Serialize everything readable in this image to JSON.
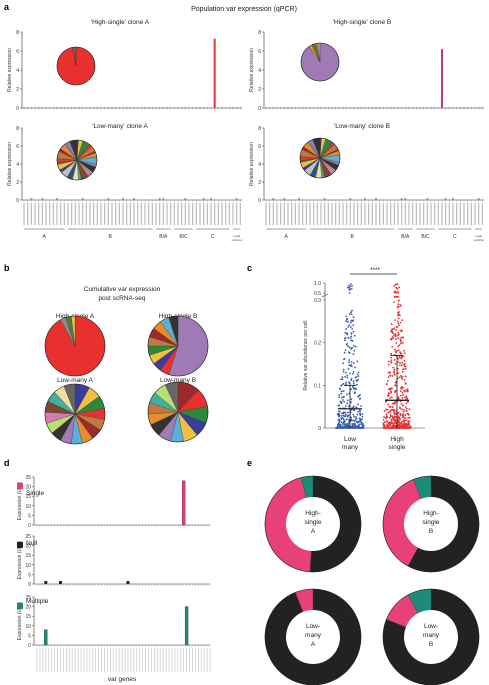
{
  "panel_labels": [
    "a",
    "b",
    "c",
    "d",
    "e"
  ],
  "panel_a": {
    "title": "Population var expression (qPCR)",
    "ylabel": "Relative expression",
    "ylim": [
      0,
      8
    ],
    "yticks": [
      "0",
      "2",
      "4",
      "6",
      "8"
    ],
    "group_labels": [
      "A",
      "B",
      "B/A",
      "B/C",
      "C",
      "upsE var2csa"
    ],
    "n_genes": 60
  },
  "chart_data": [
    {
      "type": "bar",
      "id": "a1",
      "title": "'High-single' clone A",
      "ylabel": "Relative expression",
      "ylim": [
        0,
        8
      ],
      "peak_index": 52,
      "peak_value": 7.3,
      "bar_color": "#e8302f",
      "pie_colors": [
        "#e8302f",
        "#e8302f",
        "#8c8c8c",
        "#4a7a4a"
      ],
      "pie_values": [
        97,
        1,
        1,
        1
      ]
    },
    {
      "type": "bar",
      "id": "a2",
      "title": "'High-single' clone B",
      "ylabel": "Relative expression",
      "ylim": [
        0,
        8
      ],
      "peak_index": 48,
      "peak_value": 6.2,
      "bar_color": "#c03a8a",
      "pie_colors": [
        "#a07ab5",
        "#e88c2a",
        "#4a7a4a",
        "#8c8c8c",
        "#d6a04a"
      ],
      "pie_values": [
        90,
        3,
        3,
        2,
        2
      ]
    },
    {
      "type": "bar",
      "id": "a3",
      "title": "'Low-many' clone A",
      "ylabel": "Relative expression",
      "ylim": [
        0,
        8
      ],
      "peak_index": null,
      "peak_value": 0.2,
      "bar_color": "#5b9bd5"
    },
    {
      "type": "bar",
      "id": "a4",
      "title": "'Low-many' clone B",
      "ylabel": "Relative expression",
      "ylim": [
        0,
        8
      ],
      "peak_index": null,
      "peak_value": 0.2,
      "bar_color": "#5b9bd5"
    },
    {
      "type": "pie",
      "id": "b1",
      "title": "High-single A",
      "values": [
        92,
        3,
        3,
        2
      ],
      "colors": [
        "#e8302f",
        "#8c8c8c",
        "#4a7a4a",
        "#f0c040"
      ]
    },
    {
      "type": "pie",
      "id": "b2",
      "title": "High-single B",
      "values": [
        55,
        5,
        5,
        5,
        5,
        5,
        5,
        5,
        5,
        5
      ],
      "colors": [
        "#a07ab5",
        "#e8302f",
        "#3c3c9c",
        "#f0c040",
        "#2a8a3a",
        "#c07a40",
        "#9c2a2a",
        "#e88c2a",
        "#5ab0d8",
        "#333333"
      ]
    },
    {
      "type": "pie",
      "id": "b3",
      "title": "Low-many A",
      "values": [
        8,
        7,
        7,
        6,
        6,
        6,
        6,
        6,
        6,
        6,
        6,
        6,
        6,
        6,
        6,
        6
      ],
      "colors": [
        "#3c3c9c",
        "#f0c040",
        "#2a8a3a",
        "#e8302f",
        "#c07a40",
        "#9c2a2a",
        "#e88c2a",
        "#5ab0d8",
        "#a07ab5",
        "#333333",
        "#b8e070",
        "#d67ab5",
        "#7a4a2a",
        "#40b0a0",
        "#f0e0a0",
        "#666666"
      ]
    },
    {
      "type": "pie",
      "id": "b4",
      "title": "Low-many B",
      "values": [
        12,
        10,
        9,
        8,
        8,
        7,
        7,
        7,
        6,
        6,
        6,
        7,
        7
      ],
      "colors": [
        "#9c2a2a",
        "#e8302f",
        "#2a8a3a",
        "#3c3c9c",
        "#f0c040",
        "#5ab0d8",
        "#a07ab5",
        "#333333",
        "#e88c2a",
        "#c07a40",
        "#40b0a0",
        "#b8e070",
        "#666666"
      ]
    },
    {
      "type": "scatter",
      "id": "c",
      "ylabel": "Relative var abundance per cell",
      "categories": [
        "Low many",
        "High single"
      ],
      "yticks": [
        "0",
        "0.1",
        "0.2",
        "0.3",
        "0.5",
        "1.0"
      ],
      "ylim": [
        0,
        1
      ],
      "means": [
        0.045,
        0.065
      ],
      "sd_upper": [
        0.1,
        0.17
      ],
      "significance": "****",
      "colors": [
        "#3a5fb0",
        "#e8302f"
      ]
    },
    {
      "type": "bar",
      "id": "d1",
      "legend": "Single",
      "ylabel": "Expression (UMI)",
      "ylim": [
        0,
        25
      ],
      "yticks": [
        "0",
        "5",
        "10",
        "15",
        "20",
        "25"
      ],
      "bars": [
        {
          "index": 50,
          "value": 23
        }
      ],
      "color": "#e0407a"
    },
    {
      "type": "bar",
      "id": "d2",
      "legend": "Null",
      "ylabel": "Expression (UMI)",
      "ylim": [
        0,
        25
      ],
      "yticks": [
        "0",
        "5",
        "10",
        "15",
        "20",
        "25"
      ],
      "bars": [
        {
          "index": 3,
          "value": 0.6
        },
        {
          "index": 8,
          "value": 0.6
        },
        {
          "index": 31,
          "value": 0.6
        }
      ],
      "color": "#222222"
    },
    {
      "type": "bar",
      "id": "d3",
      "legend": "Multiple",
      "ylabel": "Expression (UMI)",
      "ylim": [
        0,
        25
      ],
      "yticks": [
        "0",
        "5",
        "10",
        "15",
        "20",
        "25"
      ],
      "bars": [
        {
          "index": 3,
          "value": 8
        },
        {
          "index": 51,
          "value": 20
        }
      ],
      "color": "#1e8a7a"
    },
    {
      "type": "pie",
      "id": "e1",
      "title": "High-single A",
      "values": [
        0.51,
        0.45,
        0.04
      ],
      "colors": [
        "#222222",
        "#e8407a",
        "#1e8a7a"
      ]
    },
    {
      "type": "pie",
      "id": "e2",
      "title": "High-single B",
      "values": [
        0.58,
        0.36,
        0.06
      ],
      "colors": [
        "#222222",
        "#e8407a",
        "#1e8a7a"
      ]
    },
    {
      "type": "pie",
      "id": "e3",
      "title": "Low-many A",
      "values": [
        0.94,
        0.06,
        0.0
      ],
      "colors": [
        "#222222",
        "#e8407a",
        "#1e8a7a"
      ]
    },
    {
      "type": "pie",
      "id": "e4",
      "title": "Low-many B",
      "values": [
        0.81,
        0.11,
        0.08
      ],
      "colors": [
        "#222222",
        "#e8407a",
        "#1e8a7a"
      ]
    }
  ],
  "panel_b": {
    "title_line1": "Cumulative var expression",
    "title_line2": "post scRNA-seq"
  },
  "panel_c": {
    "low_label_1": "Low",
    "low_label_2": "many",
    "high_label_1": "High",
    "high_label_2": "single"
  },
  "panel_d": {
    "xlabel": "var genes"
  },
  "panel_e": {
    "labels": [
      [
        "High-",
        "single",
        "A"
      ],
      [
        "High-",
        "single",
        "B"
      ],
      [
        "Low-",
        "many",
        "A"
      ],
      [
        "Low-",
        "many",
        "B"
      ]
    ]
  }
}
